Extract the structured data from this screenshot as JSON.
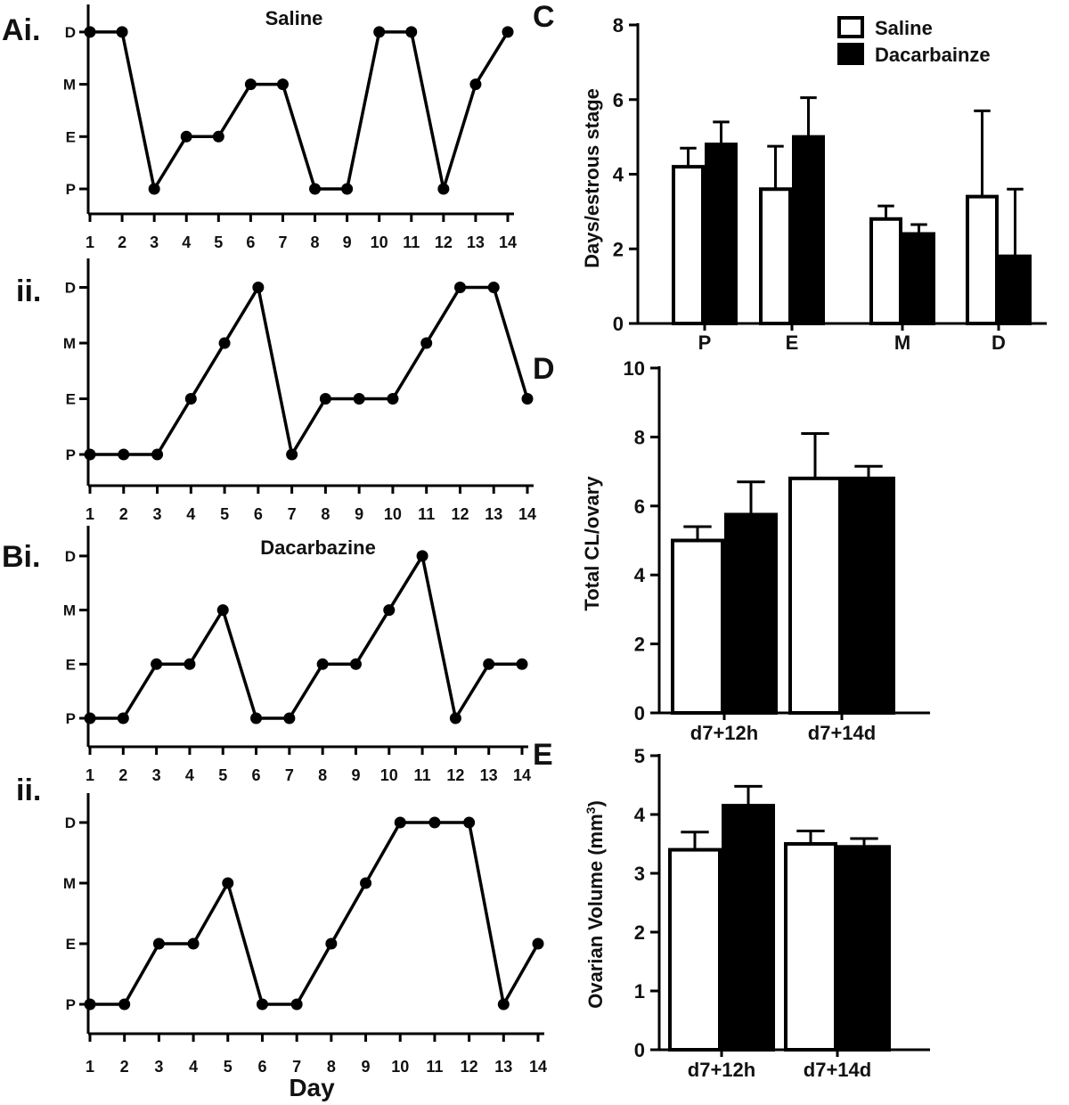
{
  "chart_data": [
    {
      "id": "Ai",
      "label": "Ai.",
      "type": "line",
      "title": "Saline",
      "x": [
        1,
        2,
        3,
        4,
        5,
        6,
        7,
        8,
        9,
        10,
        11,
        12,
        13,
        14
      ],
      "y": [
        "D",
        "D",
        "P",
        "E",
        "E",
        "M",
        "M",
        "P",
        "P",
        "D",
        "D",
        "P",
        "M",
        "D"
      ],
      "y_categories": [
        "P",
        "E",
        "M",
        "D"
      ],
      "xlabel": ""
    },
    {
      "id": "Aii",
      "label": "ii.",
      "type": "line",
      "title": "",
      "x": [
        1,
        2,
        3,
        4,
        5,
        6,
        7,
        8,
        9,
        10,
        11,
        12,
        13,
        14
      ],
      "y": [
        "P",
        "P",
        "P",
        "E",
        "M",
        "D",
        "P",
        "E",
        "E",
        "E",
        "M",
        "D",
        "D",
        "E"
      ],
      "y_categories": [
        "P",
        "E",
        "M",
        "D"
      ],
      "xlabel": ""
    },
    {
      "id": "Bi",
      "label": "Bi.",
      "type": "line",
      "title": "Dacarbazine",
      "x": [
        1,
        2,
        3,
        4,
        5,
        6,
        7,
        8,
        9,
        10,
        11,
        12,
        13,
        14
      ],
      "y": [
        "P",
        "P",
        "E",
        "E",
        "M",
        "P",
        "P",
        "E",
        "E",
        "M",
        "D",
        "P",
        "E",
        "E"
      ],
      "y_categories": [
        "P",
        "E",
        "M",
        "D"
      ],
      "xlabel": ""
    },
    {
      "id": "Bii",
      "label": "ii.",
      "type": "line",
      "title": "",
      "x": [
        1,
        2,
        3,
        4,
        5,
        6,
        7,
        8,
        9,
        10,
        11,
        12,
        13,
        14
      ],
      "y": [
        "P",
        "P",
        "E",
        "E",
        "M",
        "P",
        "P",
        "E",
        "M",
        "D",
        "D",
        "D",
        "P",
        "E"
      ],
      "y_categories": [
        "P",
        "E",
        "M",
        "D"
      ],
      "xlabel": "Day"
    },
    {
      "id": "C",
      "label": "C",
      "type": "bar",
      "categories": [
        "P",
        "E",
        "M",
        "D"
      ],
      "series": [
        {
          "name": "Saline",
          "values": [
            4.2,
            3.6,
            2.8,
            3.4
          ],
          "errors": [
            0.5,
            1.15,
            0.35,
            2.3
          ]
        },
        {
          "name": "Dacarbainze",
          "values": [
            4.8,
            5.0,
            2.4,
            1.8
          ],
          "errors": [
            0.6,
            1.05,
            0.25,
            1.8
          ]
        }
      ],
      "ylabel": "Days/estrous stage",
      "ylim": [
        0,
        8
      ],
      "yticks": [
        0,
        2,
        4,
        6,
        8
      ],
      "ytick_labels": [
        "0",
        "2",
        "4",
        "6",
        "8"
      ],
      "legend": "top-right"
    },
    {
      "id": "D",
      "label": "D",
      "type": "bar",
      "categories": [
        "d7+12h",
        "d7+14d"
      ],
      "series": [
        {
          "name": "Saline",
          "values": [
            5.0,
            6.8
          ],
          "errors": [
            0.4,
            1.3
          ]
        },
        {
          "name": "Dacarbainze",
          "values": [
            5.75,
            6.8
          ],
          "errors": [
            0.95,
            0.35
          ]
        }
      ],
      "ylabel": "Total CL/ovary",
      "ylim": [
        0,
        10
      ],
      "yticks": [
        0,
        2,
        4,
        6,
        8,
        10
      ],
      "ytick_labels": [
        "0",
        "2",
        "4",
        "6",
        "8",
        "10"
      ]
    },
    {
      "id": "E",
      "label": "E",
      "type": "bar",
      "categories": [
        "d7+12h",
        "d7+14d"
      ],
      "series": [
        {
          "name": "Saline",
          "values": [
            3.4,
            3.5
          ],
          "errors": [
            0.3,
            0.22
          ]
        },
        {
          "name": "Dacarbainze",
          "values": [
            4.15,
            3.45
          ],
          "errors": [
            0.33,
            0.14
          ]
        }
      ],
      "ylabel": "Ovarian Volume (mm",
      "ylabel_sup": "3",
      "ylabel_end": ")",
      "ylim": [
        0,
        5
      ],
      "yticks": [
        0,
        1,
        2,
        3,
        4,
        5
      ],
      "ytick_labels": [
        "0",
        "1",
        "2",
        "3",
        "4",
        "5"
      ]
    }
  ],
  "legend": {
    "items": [
      {
        "name": "Saline",
        "color": "#ffffff"
      },
      {
        "name": "Dacarbainze",
        "color": "#000000"
      }
    ]
  },
  "colors": {
    "saline": "#ffffff",
    "dacarbazine": "#000000",
    "ink": "#000000"
  }
}
